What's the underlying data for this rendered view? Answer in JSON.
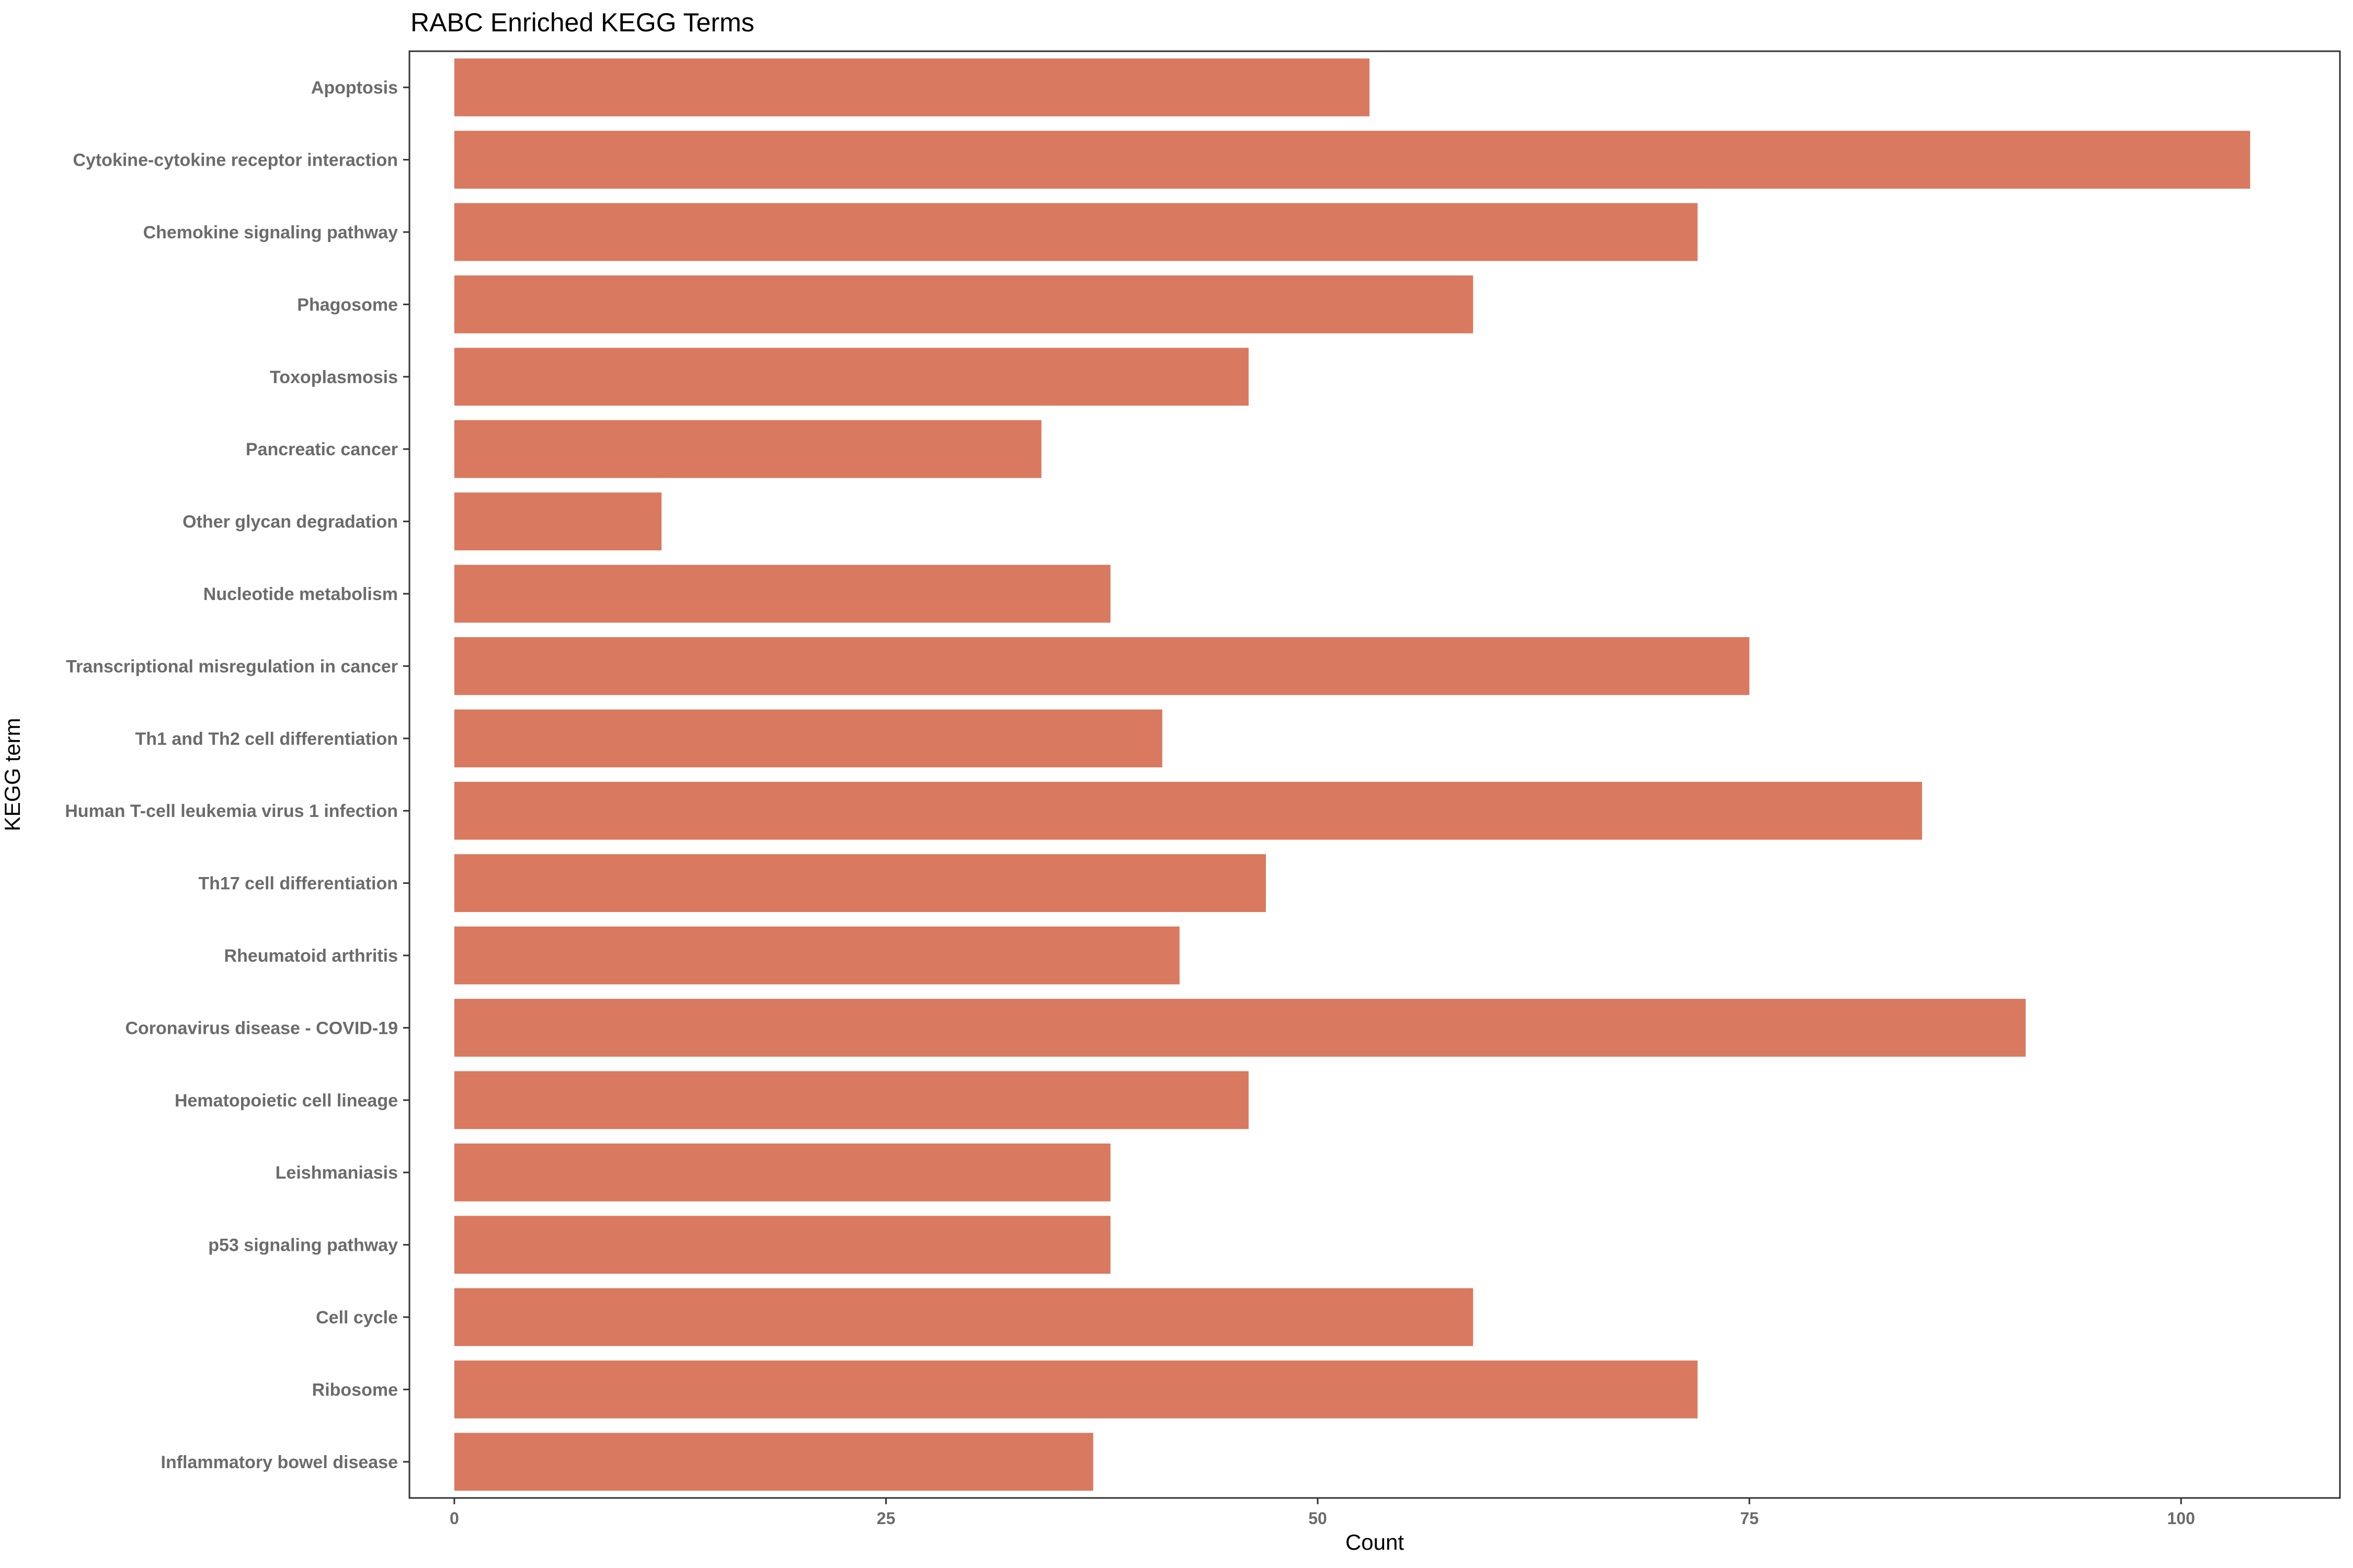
{
  "chart_data": {
    "type": "bar",
    "orientation": "horizontal",
    "title": "RABC Enriched KEGG Terms",
    "xlabel": "Count",
    "ylabel": "KEGG term",
    "categories": [
      "Apoptosis",
      "Cytokine-cytokine receptor interaction",
      "Chemokine signaling pathway",
      "Phagosome",
      "Toxoplasmosis",
      "Pancreatic cancer",
      "Other glycan degradation",
      "Nucleotide metabolism",
      "Transcriptional misregulation in cancer",
      "Th1 and Th2 cell differentiation",
      "Human T-cell leukemia virus 1 infection",
      "Th17 cell differentiation",
      "Rheumatoid arthritis",
      "Coronavirus disease - COVID-19",
      "Hematopoietic cell lineage",
      "Leishmaniasis",
      "p53 signaling pathway",
      "Cell cycle",
      "Ribosome",
      "Inflammatory bowel disease"
    ],
    "values": [
      53,
      104,
      72,
      59,
      46,
      34,
      12,
      38,
      75,
      41,
      85,
      47,
      42,
      91,
      46,
      38,
      38,
      59,
      72,
      37
    ],
    "xlim": [
      -2.6,
      109.2
    ],
    "xticks": [
      0,
      25,
      50,
      75,
      100
    ],
    "xtick_labels": [
      "0",
      "25",
      "50",
      "75",
      "100"
    ],
    "bar_color": "#d9795f",
    "grid": false,
    "legend": "none"
  }
}
